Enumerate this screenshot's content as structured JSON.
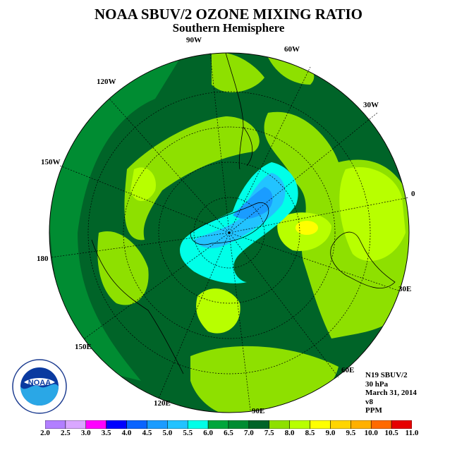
{
  "title": "NOAA SBUV/2 OZONE MIXING RATIO",
  "subtitle": "Southern Hemisphere",
  "meta": {
    "satellite": "N19 SBUV/2",
    "level": "30 hPa",
    "date": "March 31, 2014",
    "version": "v8",
    "units": "PPM"
  },
  "longitude_labels": [
    "90W",
    "60W",
    "30W",
    "0",
    "30E",
    "60E",
    "90E",
    "120E",
    "150E",
    "180",
    "150W",
    "120W"
  ],
  "colorbar": {
    "labels": [
      "2.0",
      "2.5",
      "3.0",
      "3.5",
      "4.0",
      "4.5",
      "5.0",
      "5.5",
      "6.0",
      "6.5",
      "7.0",
      "7.5",
      "8.0",
      "8.5",
      "9.0",
      "9.5",
      "10.0",
      "10.5",
      "11.0"
    ],
    "colors": [
      "#b27fff",
      "#d9a7ff",
      "#ff00ff",
      "#0000ff",
      "#0a64ff",
      "#1a9cff",
      "#22c3ff",
      "#00ffe8",
      "#00a63c",
      "#008c32",
      "#006428",
      "#8ee000",
      "#b8ff00",
      "#ffff00",
      "#ffd500",
      "#ffb000",
      "#ff6a00",
      "#e60000",
      "#8b5a32"
    ]
  },
  "logo_text": "NOAA",
  "logo_ring_text": "NATIONAL OCEANIC AND ATMOSPHERIC ADMINISTRATION · U.S. DEPARTMENT OF COMMERCE"
}
